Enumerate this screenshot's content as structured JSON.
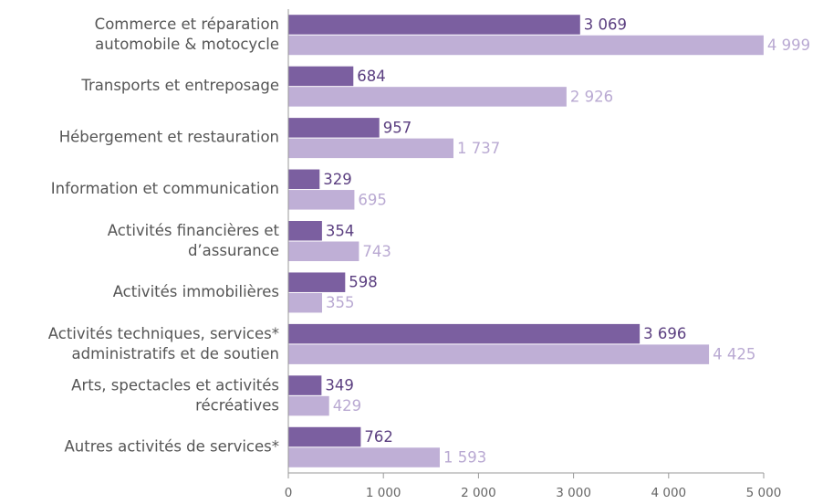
{
  "chart_data": {
    "type": "bar",
    "orientation": "horizontal",
    "categories": [
      "Commerce et réparation\nautomobile & motocycle",
      "Transports et entreposage",
      "Hébergement et restauration",
      "Information et communication",
      "Activités financières et\nd’assurance",
      "Activités immobilières",
      "Activités techniques, services*\nadministratifs et de soutien",
      "Arts, spectacles et activités\nrécréatives",
      "Autres activités de services*"
    ],
    "series": [
      {
        "color": "#7b5fa0",
        "label_color": "#5b3f80",
        "values": [
          3069,
          684,
          957,
          329,
          354,
          598,
          3696,
          349,
          762
        ],
        "value_labels": [
          "3 069",
          "684",
          "957",
          "329",
          "354",
          "598",
          "3 696",
          "349",
          "762"
        ]
      },
      {
        "color": "#bfafd6",
        "label_color": "#b9a9d2",
        "values": [
          4999,
          2926,
          1737,
          695,
          743,
          355,
          4425,
          429,
          1593
        ],
        "value_labels": [
          "4 999",
          "2 926",
          "1 737",
          "695",
          "743",
          "355",
          "4 425",
          "429",
          "1 593"
        ]
      }
    ],
    "xlim": [
      0,
      5000
    ],
    "xticks": [
      0,
      {
        "value": 1000,
        "label": "1 000"
      },
      {
        "value": 2000,
        "label": "2 000"
      },
      {
        "value": 3000,
        "label": "3 000"
      },
      {
        "value": 4000,
        "label": "4 000"
      },
      {
        "value": 5000,
        "label": "5 000"
      }
    ],
    "grid": false
  }
}
